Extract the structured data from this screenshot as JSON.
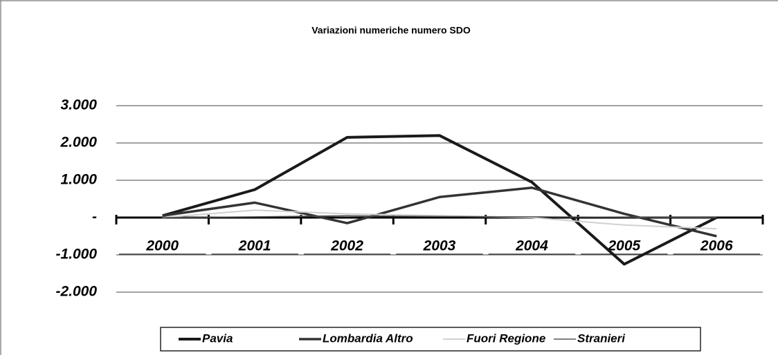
{
  "chart_data": {
    "type": "line",
    "title": "Variazioni numeriche numero SDO",
    "categories": [
      "2000",
      "2001",
      "2002",
      "2003",
      "2004",
      "2005",
      "2006"
    ],
    "series": [
      {
        "name": "Pavia",
        "color": "#1a1a1a",
        "width": 4,
        "values": [
          50,
          750,
          2150,
          2200,
          950,
          -1250,
          0
        ]
      },
      {
        "name": "Lombardia Altro",
        "color": "#333333",
        "width": 3.5,
        "values": [
          50,
          400,
          -150,
          550,
          800,
          100,
          -500
        ]
      },
      {
        "name": "Fuori Regione",
        "color": "#d0d0d0",
        "width": 2,
        "values": [
          0,
          200,
          100,
          50,
          0,
          -200,
          -300
        ]
      },
      {
        "name": "Stranieri",
        "color": "#555555",
        "width": 1.5,
        "values": [
          0,
          20,
          50,
          30,
          20,
          10,
          0
        ]
      }
    ],
    "ylim": [
      -2500,
      3500
    ],
    "yticks": [
      {
        "value": -2000,
        "label": "-2.000"
      },
      {
        "value": -1000,
        "label": "-1.000"
      },
      {
        "value": 0,
        "label": "-"
      },
      {
        "value": 1000,
        "label": "1.000"
      },
      {
        "value": 2000,
        "label": "2.000"
      },
      {
        "value": 3000,
        "label": "3.000"
      }
    ],
    "grid": true
  }
}
